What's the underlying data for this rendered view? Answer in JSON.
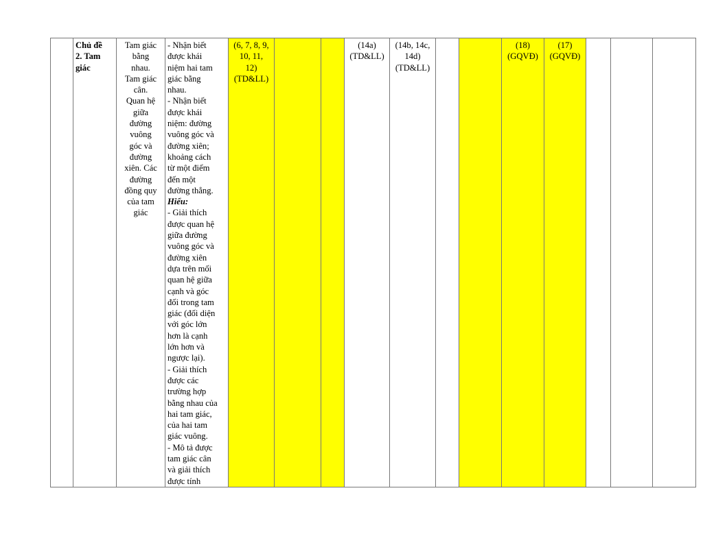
{
  "row": {
    "topic": [
      "Chủ đề",
      "2. Tam",
      "giác"
    ],
    "content": [
      "Tam giác",
      "bằng",
      "nhau.",
      "Tam giác",
      "cân.",
      "Quan hệ",
      "giữa",
      "đường",
      "vuông",
      "góc và",
      "đường",
      "xiên. Các",
      "đường",
      "đồng quy",
      "của tam",
      "giác"
    ],
    "requirements_a": [
      "- Nhận biết",
      "được khái",
      "niệm hai tam",
      "giác bằng",
      "nhau.",
      "- Nhận biết",
      "được khái",
      "niệm: đường",
      "vuông góc và",
      "đường xiên;",
      "khoảng cách",
      "từ một điểm",
      "đến một",
      "đường thẳng."
    ],
    "heading_hieu": "Hiểu:",
    "requirements_b": [
      "- Giải thích",
      "được quan hệ",
      "giữa đường",
      "vuông góc và",
      "đường xiên",
      "dựa trên mối",
      "quan hệ giữa",
      "cạnh và góc",
      "đối trong tam",
      "giác (đối diện",
      "với góc lớn",
      "hơn là cạnh",
      "lớn hơn và",
      "ngược lại).",
      "- Giải thích",
      "được các",
      "trường hợp",
      "bằng nhau của",
      "hai tam giác,",
      "của hai tam",
      "giác vuông.",
      "- Mô tả được",
      "tam giác cân",
      "và giải thích",
      "được tính"
    ],
    "col5": [
      "(6, 7, 8, 9,",
      "10, 11,",
      "12)",
      "(TD&LL)"
    ],
    "col8": [
      "(14a)",
      "(TD&LL)"
    ],
    "col9": [
      "(14b, 14c,",
      "14d)",
      "(TD&LL)"
    ],
    "col12": [
      "(18)",
      "(GQVĐ)"
    ],
    "col13": [
      "(17)",
      "(GQVĐ)"
    ]
  },
  "colors": {
    "highlight": "#ffff00",
    "border": "#777777"
  }
}
